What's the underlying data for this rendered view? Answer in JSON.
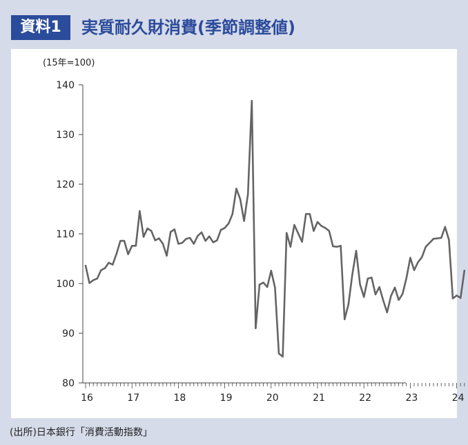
{
  "header": {
    "badge": "資料1",
    "title": "実質耐久財消費(季節調整値)"
  },
  "source": "(出所)日本銀行「消費活動指数」",
  "colors": {
    "accent": "#2b4b9b",
    "background": "#d6dbe9",
    "line": "#646464"
  },
  "chart_data": {
    "type": "line",
    "unit_label": "(15年=100)",
    "ylim": [
      80,
      140
    ],
    "yticks": [
      80,
      90,
      100,
      110,
      120,
      130,
      140
    ],
    "xtick_labels": [
      "16",
      "17",
      "18",
      "19",
      "20",
      "21",
      "22",
      "23",
      "24"
    ],
    "x_start": "2016-01",
    "grid": false,
    "series": [
      {
        "values": [
          103.6,
          100.1,
          100.7,
          101.0,
          102.7,
          103.1,
          104.2,
          103.8,
          106.0,
          108.6,
          108.6,
          105.9,
          107.6,
          107.6,
          114.6,
          109.4,
          111.1,
          110.6,
          108.7,
          109.1,
          108.0,
          105.6,
          110.4,
          110.9,
          108.0,
          108.2,
          109.0,
          109.2,
          108.0,
          109.6,
          110.3,
          108.6,
          109.5,
          108.3,
          108.7,
          110.8,
          111.2,
          112.1,
          114.0,
          119.1,
          117.0,
          112.6,
          118.0,
          136.8,
          91.0,
          99.8,
          100.2,
          99.3,
          102.6,
          99.2,
          85.9,
          85.3,
          110.2,
          107.4,
          111.8,
          110.1,
          108.4,
          114.0,
          114.0,
          110.6,
          112.4,
          111.6,
          111.2,
          110.6,
          107.5,
          107.4,
          107.6,
          92.8,
          95.8,
          101.8,
          106.6,
          99.8,
          97.3,
          101.0,
          101.2,
          97.8,
          99.3,
          96.6,
          94.2,
          97.5,
          99.2,
          96.7,
          97.9,
          101.1,
          105.2,
          102.7,
          104.3,
          105.3,
          107.4,
          108.2,
          109.0,
          109.1,
          109.2,
          111.4,
          108.8,
          97.0,
          97.6,
          97.1,
          102.6
        ]
      }
    ]
  }
}
